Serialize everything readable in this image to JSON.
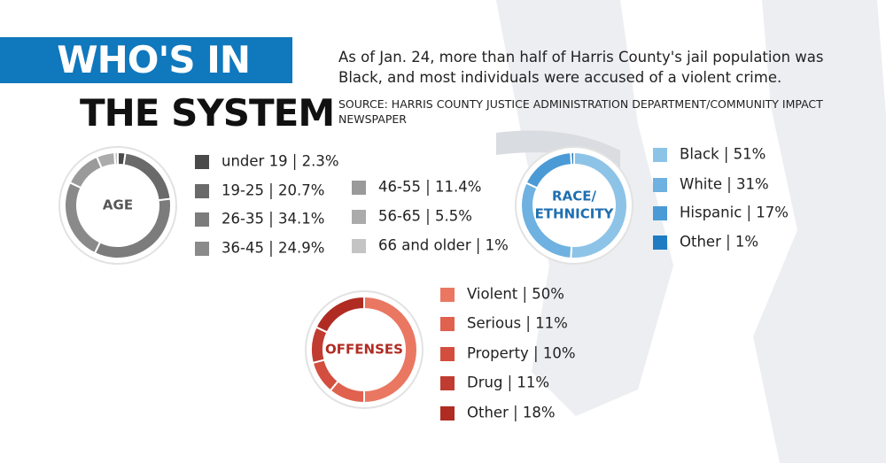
{
  "header": {
    "title_lines": [
      "WHO'S IN",
      "THE SYSTEM"
    ],
    "description": "As of Jan. 24, more than half of Harris County's jail population was Black, and most individuals were accused of a violent crime.",
    "source": "SOURCE: HARRIS COUNTY JUSTICE ADMINISTRATION DEPARTMENT/COMMUNITY IMPACT NEWSPAPER"
  },
  "chart_data": [
    {
      "type": "pie",
      "title": "AGE",
      "categories": [
        "under 19",
        "19-25",
        "26-35",
        "36-45",
        "46-55",
        "56-65",
        "66 and older"
      ],
      "values": [
        2.3,
        20.7,
        34.1,
        24.9,
        11.4,
        5.5,
        1
      ],
      "value_labels": [
        "2.3%",
        "20.7%",
        "34.1%",
        "24.9%",
        "11.4%",
        "5.5%",
        "1%"
      ],
      "colors": [
        "#4a4a4a",
        "#6a6a6a",
        "#7c7c7c",
        "#8a8a8a",
        "#9a9a9a",
        "#ababab",
        "#c4c4c4"
      ]
    },
    {
      "type": "pie",
      "title": [
        "RACE/",
        "ETHNICITY"
      ],
      "categories": [
        "Black",
        "White",
        "Hispanic",
        "Other"
      ],
      "values": [
        51,
        31,
        17,
        1
      ],
      "value_labels": [
        "51%",
        "31%",
        "17%",
        "1%"
      ],
      "colors": [
        "#8ec3e8",
        "#6fb1e0",
        "#4a9ad6",
        "#1f7cc2"
      ]
    },
    {
      "type": "pie",
      "title": "OFFENSES",
      "categories": [
        "Violent",
        "Serious",
        "Property",
        "Drug",
        "Other"
      ],
      "values": [
        50,
        11,
        10,
        11,
        18
      ],
      "value_labels": [
        "50%",
        "11%",
        "10%",
        "11%",
        "18%"
      ],
      "colors": [
        "#ea7762",
        "#e0614e",
        "#d34e3e",
        "#c13c30",
        "#b02c23"
      ]
    }
  ]
}
